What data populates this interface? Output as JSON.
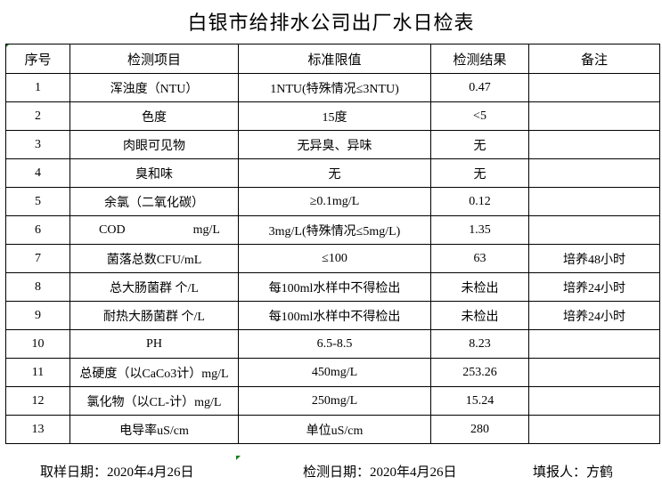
{
  "title": "白银市给排水公司出厂水日检表",
  "headers": [
    "序号",
    "检测项目",
    "标准限值",
    "检测结果",
    "备注"
  ],
  "rows": [
    {
      "no": "1",
      "item": "浑浊度（NTU）",
      "limit": "1NTU(特殊情况≤3NTU)",
      "result": "0.47",
      "note": ""
    },
    {
      "no": "2",
      "item": "色度",
      "limit": "15度",
      "result": "<5",
      "note": ""
    },
    {
      "no": "3",
      "item": "肉眼可见物",
      "limit": "无异臭、异味",
      "result": "无",
      "note": ""
    },
    {
      "no": "4",
      "item": "臭和味",
      "limit": "无",
      "result": "无",
      "note": ""
    },
    {
      "no": "5",
      "item": "余氯（二氧化碳）",
      "limit": "≥0.1mg/L",
      "result": "0.12",
      "note": ""
    },
    {
      "no": "6",
      "item": "COD",
      "item_unit": "mg/L",
      "limit": "3mg/L(特殊情况≤5mg/L)",
      "result": "1.35",
      "note": ""
    },
    {
      "no": "7",
      "item": "菌落总数CFU/mL",
      "limit": "≤100",
      "result": "63",
      "note": "培养48小时"
    },
    {
      "no": "8",
      "item": "总大肠菌群 个/L",
      "limit": "每100ml水样中不得检出",
      "result": "未检出",
      "note": "培养24小时"
    },
    {
      "no": "9",
      "item": "耐热大肠菌群 个/L",
      "limit": "每100ml水样中不得检出",
      "result": "未检出",
      "note": "培养24小时"
    },
    {
      "no": "10",
      "item": "PH",
      "limit": "6.5-8.5",
      "result": "8.23",
      "note": ""
    },
    {
      "no": "11",
      "item": "总硬度（以CaCo3计）mg/L",
      "limit": "450mg/L",
      "result": "253.26",
      "note": ""
    },
    {
      "no": "12",
      "item": "氯化物（以CL-计）mg/L",
      "limit": "250mg/L",
      "result": "15.24",
      "note": ""
    },
    {
      "no": "13",
      "item": "电导率uS/cm",
      "limit": "单位uS/cm",
      "result": "280",
      "note": ""
    }
  ],
  "footer": {
    "sample_date": "取样日期：2020年4月26日",
    "test_date": "检测日期：2020年4月26日",
    "reporter": "填报人：方鹤"
  }
}
